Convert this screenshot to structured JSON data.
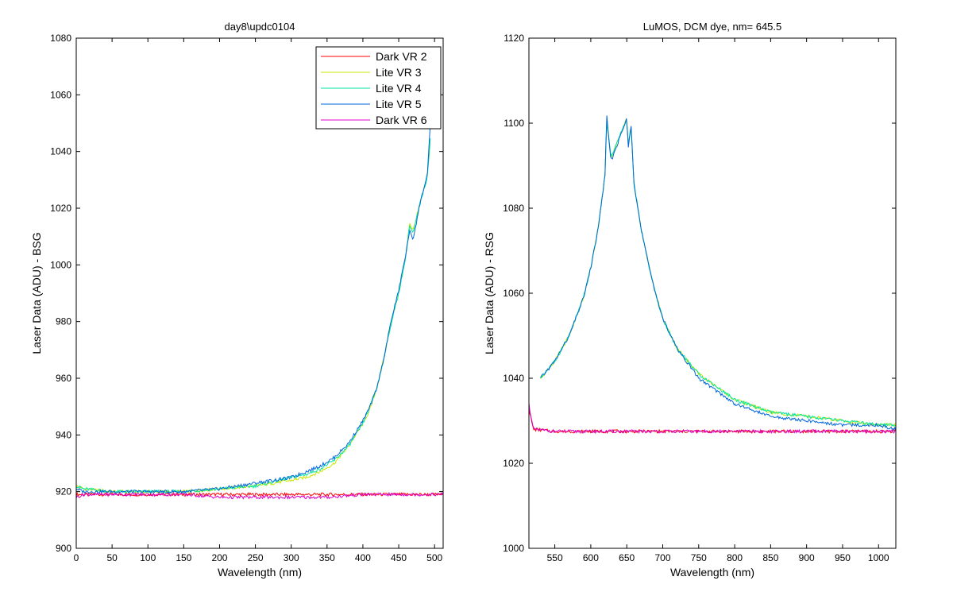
{
  "chart_data": [
    {
      "type": "line",
      "title": "day8\\updc0104",
      "xlabel": "Wavelength (nm)",
      "ylabel": "Laser Data (ADU) - BSG",
      "xlim": [
        0,
        512
      ],
      "ylim": [
        900,
        1080
      ],
      "xticks": [
        0,
        50,
        100,
        150,
        200,
        250,
        300,
        350,
        400,
        450,
        500
      ],
      "yticks": [
        900,
        920,
        940,
        960,
        980,
        1000,
        1020,
        1040,
        1060,
        1080
      ],
      "grid": false,
      "legend_position": "top-right",
      "series": [
        {
          "name": "Dark VR 2",
          "color": "#ff0000",
          "x": [
            0,
            10,
            50,
            100,
            150,
            200,
            250,
            300,
            350,
            400,
            450,
            500,
            512
          ],
          "y": [
            919,
            919,
            919,
            919,
            919,
            919,
            919,
            919,
            919,
            919,
            919,
            919,
            919
          ]
        },
        {
          "name": "Lite VR 3",
          "color": "#c8e600",
          "x": [
            0,
            10,
            50,
            100,
            150,
            200,
            250,
            300,
            320,
            340,
            360,
            380,
            400,
            410,
            420,
            430,
            440,
            450,
            460,
            465,
            470,
            480,
            490,
            494
          ],
          "y": [
            922,
            921,
            920,
            920,
            920,
            921,
            922,
            924,
            925,
            927,
            930,
            936,
            944,
            949,
            957,
            968,
            980,
            990,
            1003,
            1015,
            1012,
            1022,
            1031,
            1044
          ]
        },
        {
          "name": "Lite VR 4",
          "color": "#00e6a0",
          "x": [
            0,
            10,
            50,
            100,
            150,
            200,
            250,
            300,
            320,
            340,
            360,
            380,
            400,
            410,
            420,
            430,
            440,
            450,
            460,
            465,
            470,
            480,
            490,
            494
          ],
          "y": [
            922,
            921,
            920,
            920,
            920,
            921,
            922,
            925,
            926,
            928,
            931,
            936,
            944,
            950,
            957,
            968,
            980,
            990,
            1003,
            1014,
            1011,
            1022,
            1031,
            1045
          ]
        },
        {
          "name": "Lite VR 5",
          "color": "#0066dd",
          "x": [
            0,
            10,
            50,
            100,
            150,
            200,
            250,
            300,
            320,
            340,
            360,
            380,
            400,
            410,
            420,
            430,
            440,
            450,
            460,
            465,
            470,
            480,
            490,
            494
          ],
          "y": [
            921,
            920,
            920,
            920,
            920,
            921,
            923,
            925,
            927,
            929,
            932,
            937,
            945,
            950,
            957,
            968,
            981,
            991,
            1004,
            1012,
            1009,
            1022,
            1032,
            1049
          ]
        },
        {
          "name": "Dark VR 6",
          "color": "#dd00cc",
          "x": [
            0,
            10,
            50,
            100,
            150,
            200,
            250,
            300,
            350,
            400,
            450,
            500,
            512
          ],
          "y": [
            918,
            919,
            919,
            919,
            919,
            918,
            918,
            918,
            918,
            919,
            919,
            919,
            919
          ]
        }
      ]
    },
    {
      "type": "line",
      "title": "LuMOS, DCM dye, nm= 645.5",
      "xlabel": "Wavelength (nm)",
      "ylabel": "Laser Data (ADU) - RSG",
      "xlim": [
        514,
        1024
      ],
      "ylim": [
        1000,
        1120
      ],
      "xticks": [
        550,
        600,
        650,
        700,
        750,
        800,
        850,
        900,
        950,
        1000
      ],
      "yticks": [
        1000,
        1020,
        1040,
        1060,
        1080,
        1100,
        1120
      ],
      "grid": false,
      "series": [
        {
          "name": "Dark VR 2",
          "color": "#ff0000",
          "x": [
            514,
            520,
            550,
            600,
            650,
            700,
            750,
            800,
            850,
            900,
            950,
            1000,
            1024
          ],
          "y": [
            1033,
            1028,
            1027.5,
            1027.5,
            1027.5,
            1027.5,
            1027.5,
            1027.5,
            1027.5,
            1027.5,
            1027.5,
            1027.5,
            1027.5
          ]
        },
        {
          "name": "Lite VR 3",
          "color": "#c8e600",
          "x": [
            530,
            550,
            570,
            590,
            600,
            610,
            620,
            622,
            628,
            650,
            652,
            656,
            660,
            670,
            680,
            690,
            700,
            720,
            750,
            800,
            850,
            900,
            950,
            1000,
            1024
          ],
          "y": [
            1040,
            1044,
            1050,
            1059,
            1066,
            1075,
            1088,
            1101,
            1092,
            1101,
            1095,
            1099,
            1086,
            1075,
            1067,
            1060,
            1054,
            1047,
            1041,
            1035,
            1032,
            1031,
            1030,
            1029,
            1029
          ]
        },
        {
          "name": "Lite VR 4",
          "color": "#00e6a0",
          "x": [
            530,
            550,
            570,
            590,
            600,
            610,
            620,
            622,
            628,
            650,
            652,
            656,
            660,
            670,
            680,
            690,
            700,
            720,
            750,
            800,
            850,
            900,
            950,
            1000,
            1024
          ],
          "y": [
            1040,
            1044,
            1050,
            1059,
            1066,
            1075,
            1088,
            1101,
            1092,
            1101,
            1095,
            1099,
            1086,
            1075,
            1067,
            1060,
            1054,
            1047,
            1041,
            1035,
            1032,
            1031,
            1030,
            1029,
            1029
          ]
        },
        {
          "name": "Lite VR 5",
          "color": "#0066dd",
          "x": [
            530,
            550,
            570,
            590,
            600,
            610,
            620,
            622,
            628,
            650,
            652,
            656,
            660,
            670,
            680,
            690,
            700,
            720,
            750,
            800,
            850,
            900,
            950,
            1000,
            1024
          ],
          "y": [
            1040,
            1044,
            1050,
            1059,
            1066,
            1075,
            1088,
            1102,
            1091,
            1101,
            1094,
            1100,
            1086,
            1075,
            1067,
            1060,
            1054,
            1047,
            1040,
            1034,
            1031,
            1030,
            1029,
            1029,
            1028
          ]
        },
        {
          "name": "Dark VR 6",
          "color": "#dd00cc",
          "x": [
            514,
            520,
            550,
            600,
            650,
            700,
            750,
            800,
            850,
            900,
            950,
            1000,
            1024
          ],
          "y": [
            1034,
            1028,
            1027.5,
            1027.5,
            1027.5,
            1027.5,
            1027.5,
            1027.5,
            1027.5,
            1027.5,
            1027.5,
            1027.5,
            1027.5
          ]
        }
      ]
    }
  ]
}
